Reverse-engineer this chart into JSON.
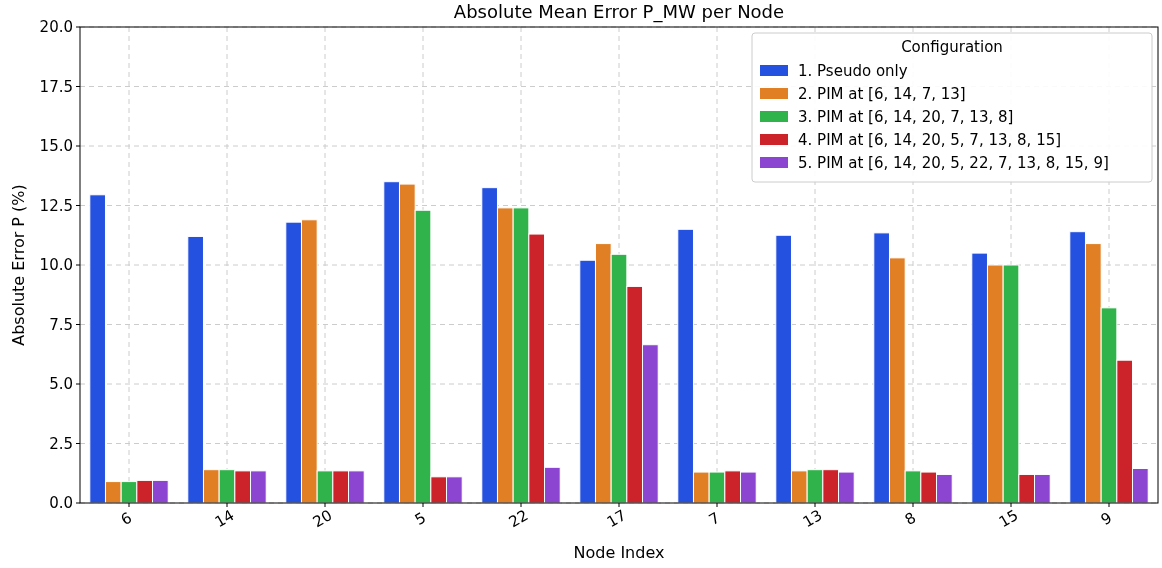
{
  "chart_data": {
    "type": "bar",
    "title": "Absolute Mean Error P_MW per Node",
    "xlabel": "Node Index",
    "ylabel": "Absolute Error P (%)",
    "legend_title": "Configuration",
    "categories": [
      "6",
      "14",
      "20",
      "5",
      "22",
      "17",
      "7",
      "13",
      "8",
      "15",
      "9"
    ],
    "series": [
      {
        "name": "1. Pseudo only",
        "color": "#2451e0",
        "values": [
          12.95,
          11.2,
          11.8,
          13.5,
          13.25,
          10.2,
          11.5,
          11.25,
          11.35,
          10.5,
          11.4
        ]
      },
      {
        "name": "2. PIM at [6, 14, 7, 13]",
        "color": "#e07f24",
        "values": [
          0.9,
          1.4,
          11.9,
          13.4,
          12.4,
          10.9,
          1.3,
          1.35,
          10.3,
          10.0,
          10.9
        ]
      },
      {
        "name": "3. PIM at [6, 14, 20, 7, 13, 8]",
        "color": "#2fb34a",
        "values": [
          0.9,
          1.4,
          1.35,
          12.3,
          12.4,
          10.45,
          1.3,
          1.4,
          1.35,
          10.0,
          8.2
        ]
      },
      {
        "name": "4. PIM at [6, 14, 20, 5, 7, 13, 8, 15]",
        "color": "#cc2229",
        "values": [
          0.95,
          1.35,
          1.35,
          1.1,
          11.3,
          9.1,
          1.35,
          1.4,
          1.3,
          1.2,
          6.0
        ]
      },
      {
        "name": "5. PIM at [6, 14, 20, 5, 22, 7, 13, 8, 15, 9]",
        "color": "#8b45d0",
        "values": [
          0.95,
          1.35,
          1.35,
          1.1,
          1.5,
          6.65,
          1.3,
          1.3,
          1.2,
          1.2,
          1.45
        ]
      }
    ],
    "ylim": [
      0,
      20
    ],
    "yticks": [
      {
        "value": 0,
        "label": "0.0"
      },
      {
        "value": 2.5,
        "label": "2.5"
      },
      {
        "value": 5,
        "label": "5.0"
      },
      {
        "value": 7.5,
        "label": "7.5"
      },
      {
        "value": 10,
        "label": "10.0"
      },
      {
        "value": 12.5,
        "label": "12.5"
      },
      {
        "value": 15,
        "label": "15.0"
      },
      {
        "value": 17.5,
        "label": "17.5"
      },
      {
        "value": 20,
        "label": "20.0"
      }
    ],
    "grid": true,
    "line_style": "dashed",
    "legend": "top right"
  }
}
